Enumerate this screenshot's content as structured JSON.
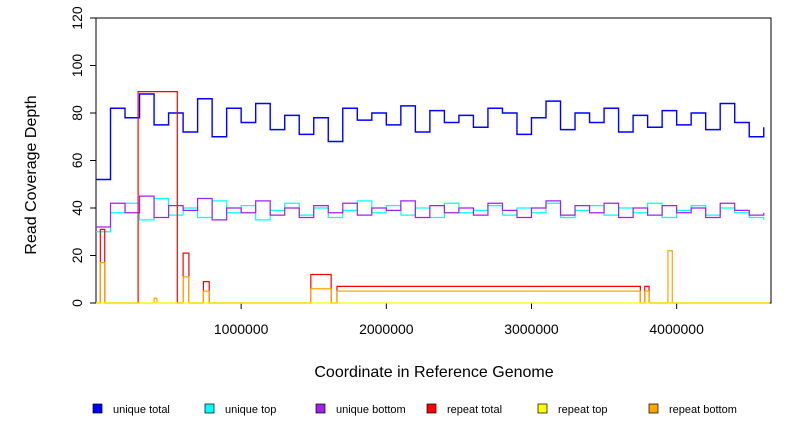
{
  "chart_data": {
    "type": "line",
    "title": "",
    "xlabel": "Coordinate in Reference Genome",
    "ylabel": "Read Coverage Depth",
    "xlim": [
      0,
      4650000
    ],
    "ylim": [
      0,
      120
    ],
    "x_ticks": [
      1000000,
      2000000,
      3000000,
      4000000
    ],
    "x_tick_labels": [
      "1000000",
      "2000000",
      "3000000",
      "4000000"
    ],
    "y_ticks": [
      0,
      20,
      40,
      60,
      80,
      100,
      120
    ],
    "y_tick_labels": [
      "0",
      "20",
      "40",
      "60",
      "80",
      "100",
      "120"
    ],
    "grid": false,
    "legend_position": "bottom",
    "series": [
      {
        "name": "unique total",
        "color": "#0000ff",
        "x": [
          0,
          100000,
          200000,
          300000,
          400000,
          500000,
          600000,
          700000,
          800000,
          900000,
          1000000,
          1100000,
          1200000,
          1300000,
          1400000,
          1500000,
          1600000,
          1700000,
          1800000,
          1900000,
          2000000,
          2100000,
          2200000,
          2300000,
          2400000,
          2500000,
          2600000,
          2700000,
          2800000,
          2900000,
          3000000,
          3100000,
          3200000,
          3300000,
          3400000,
          3500000,
          3600000,
          3700000,
          3800000,
          3900000,
          4000000,
          4100000,
          4200000,
          4300000,
          4400000,
          4500000,
          4600000
        ],
        "values": [
          52,
          82,
          78,
          88,
          75,
          80,
          72,
          86,
          70,
          82,
          76,
          84,
          73,
          79,
          71,
          78,
          68,
          82,
          77,
          80,
          75,
          83,
          72,
          81,
          76,
          79,
          74,
          82,
          80,
          71,
          78,
          85,
          73,
          80,
          76,
          82,
          72,
          79,
          74,
          81,
          75,
          80,
          73,
          84,
          76,
          70,
          74
        ]
      },
      {
        "name": "unique top",
        "color": "#00ffff",
        "x": [
          0,
          100000,
          200000,
          300000,
          400000,
          500000,
          600000,
          700000,
          800000,
          900000,
          1000000,
          1100000,
          1200000,
          1300000,
          1400000,
          1500000,
          1600000,
          1700000,
          1800000,
          1900000,
          2000000,
          2100000,
          2200000,
          2300000,
          2400000,
          2500000,
          2600000,
          2700000,
          2800000,
          2900000,
          3000000,
          3100000,
          3200000,
          3300000,
          3400000,
          3500000,
          3600000,
          3700000,
          3800000,
          3900000,
          4000000,
          4100000,
          4200000,
          4300000,
          4400000,
          4500000,
          4600000
        ],
        "values": [
          30,
          38,
          42,
          35,
          44,
          37,
          40,
          36,
          43,
          38,
          41,
          35,
          39,
          42,
          37,
          40,
          36,
          39,
          43,
          38,
          41,
          37,
          40,
          36,
          42,
          38,
          39,
          41,
          37,
          40,
          38,
          42,
          36,
          39,
          41,
          37,
          40,
          38,
          42,
          36,
          39,
          41,
          37,
          40,
          38,
          36,
          35
        ]
      },
      {
        "name": "unique bottom",
        "color": "#a020f0",
        "x": [
          0,
          100000,
          200000,
          300000,
          400000,
          500000,
          600000,
          700000,
          800000,
          900000,
          1000000,
          1100000,
          1200000,
          1300000,
          1400000,
          1500000,
          1600000,
          1700000,
          1800000,
          1900000,
          2000000,
          2100000,
          2200000,
          2300000,
          2400000,
          2500000,
          2600000,
          2700000,
          2800000,
          2900000,
          3000000,
          3100000,
          3200000,
          3300000,
          3400000,
          3500000,
          3600000,
          3700000,
          3800000,
          3900000,
          4000000,
          4100000,
          4200000,
          4300000,
          4400000,
          4500000,
          4600000
        ],
        "values": [
          32,
          42,
          38,
          45,
          36,
          41,
          39,
          44,
          35,
          40,
          38,
          43,
          37,
          40,
          36,
          41,
          38,
          42,
          37,
          40,
          39,
          43,
          36,
          41,
          38,
          40,
          37,
          42,
          39,
          36,
          40,
          43,
          37,
          41,
          38,
          42,
          36,
          40,
          37,
          41,
          38,
          40,
          36,
          42,
          39,
          37,
          38
        ]
      },
      {
        "name": "repeat total",
        "color": "#ff0000",
        "x": [
          0,
          30000,
          60000,
          260000,
          290000,
          560000,
          600000,
          640000,
          700000,
          740000,
          780000,
          1440000,
          1480000,
          1620000,
          1660000,
          3750000,
          3780000,
          3810000,
          4640000
        ],
        "values": [
          0,
          31,
          0,
          0,
          89,
          0,
          21,
          0,
          0,
          9,
          0,
          0,
          12,
          0,
          7,
          0,
          7,
          0,
          0
        ]
      },
      {
        "name": "repeat top",
        "color": "#ffff00",
        "x": [
          0,
          4640000
        ],
        "values": [
          0,
          0
        ]
      },
      {
        "name": "repeat bottom",
        "color": "#ffa500",
        "x": [
          0,
          30000,
          60000,
          380000,
          400000,
          420000,
          560000,
          600000,
          640000,
          700000,
          740000,
          780000,
          1440000,
          1480000,
          1620000,
          1660000,
          3750000,
          3780000,
          3810000,
          3910000,
          3940000,
          3970000,
          4640000
        ],
        "values": [
          0,
          17,
          0,
          0,
          2,
          0,
          0,
          11,
          0,
          0,
          5,
          0,
          0,
          6,
          0,
          5,
          0,
          5,
          0,
          0,
          22,
          0,
          0
        ]
      }
    ]
  }
}
